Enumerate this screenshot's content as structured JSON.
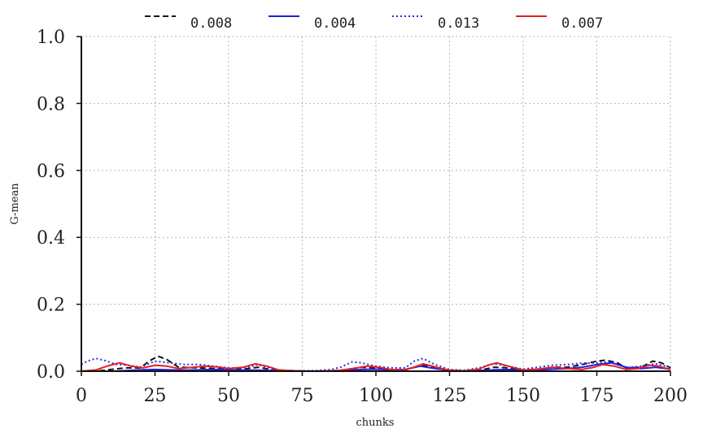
{
  "chart_data": {
    "type": "line",
    "title": "",
    "xlabel": "chunks",
    "ylabel": "G-mean",
    "xlim": [
      0,
      200
    ],
    "ylim": [
      0,
      1.0
    ],
    "xticks": [
      0,
      25,
      50,
      75,
      100,
      125,
      150,
      175,
      200
    ],
    "xtick_labels": [
      "0",
      "25",
      "50",
      "75",
      "100",
      "125",
      "150",
      "175",
      "200"
    ],
    "yticks": [
      0.0,
      0.2,
      0.4,
      0.6,
      0.8,
      1.0
    ],
    "ytick_labels": [
      "0.0",
      "0.2",
      "0.4",
      "0.6",
      "0.8",
      "1.0"
    ],
    "grid": true,
    "legend_position": "top",
    "series": [
      {
        "name": "0.008",
        "color": "#111111",
        "dash": "dashed",
        "x": [
          0,
          5,
          10,
          15,
          20,
          23,
          26,
          29,
          33,
          40,
          45,
          50,
          55,
          60,
          65,
          70,
          75,
          80,
          85,
          90,
          95,
          100,
          105,
          110,
          115,
          120,
          125,
          130,
          135,
          140,
          145,
          150,
          155,
          160,
          165,
          170,
          175,
          178,
          182,
          185,
          190,
          194,
          197,
          200
        ],
        "values": [
          0.0,
          0.0,
          0.005,
          0.01,
          0.01,
          0.03,
          0.045,
          0.035,
          0.012,
          0.01,
          0.008,
          0.005,
          0.006,
          0.012,
          0.004,
          0.002,
          0.001,
          0.0,
          0.001,
          0.004,
          0.012,
          0.01,
          0.005,
          0.004,
          0.018,
          0.012,
          0.002,
          0.0,
          0.002,
          0.012,
          0.01,
          0.004,
          0.006,
          0.012,
          0.012,
          0.02,
          0.03,
          0.033,
          0.025,
          0.01,
          0.012,
          0.03,
          0.025,
          0.01
        ]
      },
      {
        "name": "0.004",
        "color": "#1f1fe0",
        "dash": "solid",
        "x": [
          0,
          5,
          10,
          15,
          20,
          25,
          30,
          35,
          40,
          45,
          50,
          55,
          60,
          65,
          70,
          75,
          80,
          85,
          90,
          95,
          100,
          105,
          110,
          115,
          120,
          125,
          130,
          135,
          140,
          145,
          150,
          155,
          160,
          165,
          170,
          175,
          180,
          185,
          190,
          195,
          200
        ],
        "values": [
          0.0,
          0.0,
          0.0,
          0.002,
          0.004,
          0.005,
          0.004,
          0.003,
          0.004,
          0.005,
          0.004,
          0.003,
          0.003,
          0.002,
          0.001,
          0.0,
          0.0,
          0.0,
          0.002,
          0.005,
          0.006,
          0.004,
          0.005,
          0.015,
          0.008,
          0.003,
          0.001,
          0.002,
          0.004,
          0.005,
          0.003,
          0.004,
          0.006,
          0.008,
          0.012,
          0.02,
          0.025,
          0.012,
          0.008,
          0.012,
          0.006
        ]
      },
      {
        "name": "0.013",
        "color": "#2a2af0",
        "dash": "dotted",
        "x": [
          0,
          2,
          5,
          8,
          12,
          16,
          20,
          25,
          30,
          35,
          40,
          45,
          50,
          55,
          60,
          65,
          70,
          75,
          80,
          85,
          88,
          92,
          95,
          100,
          105,
          110,
          113,
          116,
          120,
          125,
          130,
          135,
          140,
          145,
          150,
          155,
          160,
          165,
          170,
          175,
          180,
          185,
          190,
          195,
          200
        ],
        "values": [
          0.02,
          0.03,
          0.038,
          0.032,
          0.02,
          0.018,
          0.012,
          0.03,
          0.025,
          0.02,
          0.02,
          0.015,
          0.01,
          0.008,
          0.02,
          0.005,
          0.002,
          0.001,
          0.002,
          0.005,
          0.012,
          0.028,
          0.025,
          0.015,
          0.01,
          0.01,
          0.03,
          0.038,
          0.02,
          0.005,
          0.003,
          0.01,
          0.022,
          0.015,
          0.006,
          0.012,
          0.018,
          0.02,
          0.024,
          0.025,
          0.028,
          0.01,
          0.015,
          0.022,
          0.012
        ]
      },
      {
        "name": "0.007",
        "color": "#e62020",
        "dash": "solid",
        "x": [
          0,
          5,
          9,
          13,
          17,
          21,
          25,
          29,
          33,
          38,
          42,
          46,
          50,
          55,
          59,
          63,
          67,
          72,
          77,
          82,
          87,
          92,
          97,
          101,
          105,
          109,
          113,
          116,
          120,
          125,
          130,
          135,
          138,
          141,
          145,
          150,
          155,
          160,
          165,
          170,
          174,
          177,
          181,
          185,
          189,
          193,
          196,
          200
        ],
        "values": [
          0.0,
          0.004,
          0.016,
          0.025,
          0.015,
          0.01,
          0.018,
          0.015,
          0.008,
          0.012,
          0.015,
          0.013,
          0.008,
          0.012,
          0.022,
          0.015,
          0.004,
          0.001,
          0.0,
          0.001,
          0.002,
          0.008,
          0.015,
          0.012,
          0.005,
          0.003,
          0.012,
          0.022,
          0.013,
          0.003,
          0.001,
          0.006,
          0.018,
          0.025,
          0.015,
          0.003,
          0.006,
          0.012,
          0.008,
          0.005,
          0.012,
          0.02,
          0.015,
          0.005,
          0.008,
          0.018,
          0.015,
          0.005
        ]
      }
    ]
  }
}
